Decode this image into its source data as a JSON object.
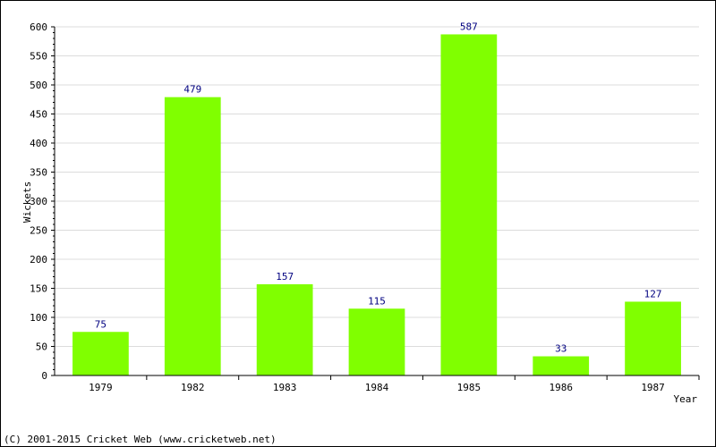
{
  "chart_data": {
    "type": "bar",
    "categories": [
      "1979",
      "1982",
      "1983",
      "1984",
      "1985",
      "1986",
      "1987"
    ],
    "values": [
      75,
      479,
      157,
      115,
      587,
      33,
      127
    ],
    "xlabel": "Year",
    "ylabel": "Wickets",
    "ylim": [
      0,
      600
    ],
    "yticks": [
      0,
      50,
      100,
      150,
      200,
      250,
      300,
      350,
      400,
      450,
      500,
      550,
      600
    ],
    "grid": true,
    "bar_color": "#80ff00",
    "value_label_color": "#000080"
  },
  "footer": {
    "credit": "(C) 2001-2015 Cricket Web (www.cricketweb.net)"
  }
}
